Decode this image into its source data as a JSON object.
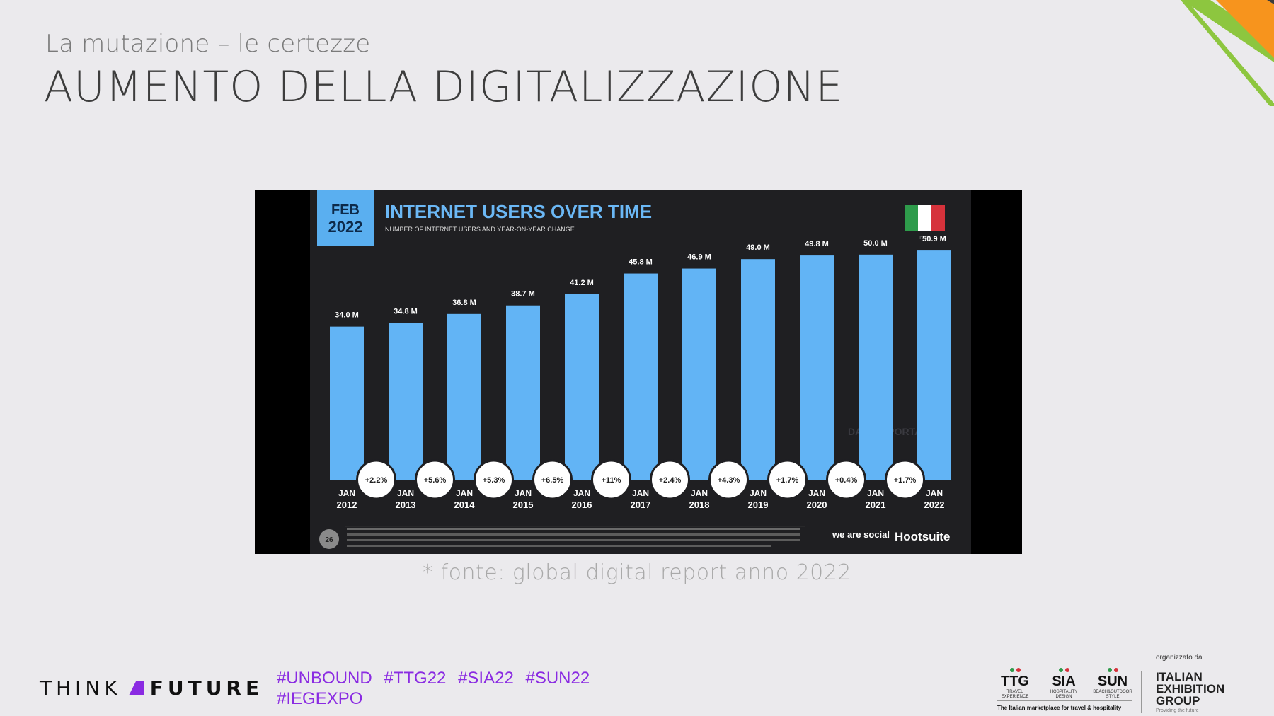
{
  "slide": {
    "subtitle": "La mutazione – le certezze",
    "title": "AUMENTO DELLA DIGITALIZZAZIONE",
    "source_note": "* fonte: global digital report anno 2022"
  },
  "chart_header": {
    "date_badge_line1": "FEB",
    "date_badge_line2": "2022",
    "heading": "INTERNET USERS OVER TIME",
    "subheading": "NUMBER OF INTERNET USERS AND YEAR-ON-YEAR CHANGE",
    "flag_label": "ITALY",
    "watermark": "DATAREPORTAL",
    "page_number": "26",
    "brand_we_are_social": "we are social",
    "brand_hootsuite": "Hootsuite"
  },
  "chart_data": {
    "type": "bar",
    "title": "INTERNET USERS OVER TIME",
    "subtitle": "NUMBER OF INTERNET USERS AND YEAR-ON-YEAR CHANGE",
    "categories": [
      "JAN 2012",
      "JAN 2013",
      "JAN 2014",
      "JAN 2015",
      "JAN 2016",
      "JAN 2017",
      "JAN 2018",
      "JAN 2019",
      "JAN 2020",
      "JAN 2021",
      "JAN 2022"
    ],
    "values": [
      34.0,
      34.8,
      36.8,
      38.7,
      41.2,
      45.8,
      46.9,
      49.0,
      49.8,
      50.0,
      50.9
    ],
    "value_labels": [
      "34.0 M",
      "34.8 M",
      "36.8 M",
      "38.7 M",
      "41.2 M",
      "45.8 M",
      "46.9 M",
      "49.0 M",
      "49.8 M",
      "50.0 M",
      "50.9 M"
    ],
    "yoy_changes": [
      "+2.2%",
      "+5.6%",
      "+5.3%",
      "+6.5%",
      "+11%",
      "+2.4%",
      "+4.3%",
      "+1.7%",
      "+0.4%",
      "+1.7%"
    ],
    "unit": "M",
    "ylim": [
      0,
      55
    ],
    "colors": {
      "bar": "#62b4f5",
      "background": "#1f1f22",
      "badge": "#5aaff0",
      "heading": "#6bb8f6"
    }
  },
  "footer": {
    "logo_left": "THINK",
    "logo_right": "FUTURE",
    "hashtags": [
      "#UNBOUND",
      "#TTG22",
      "#SIA22",
      "#SUN22",
      "#IEGEXPO"
    ],
    "brands": [
      {
        "name": "TTG",
        "sub": "TRAVEL EXPERIENCE"
      },
      {
        "name": "SIA",
        "sub": "HOSPITALITY DESIGN"
      },
      {
        "name": "SUN",
        "sub": "BEACH&OUTDOOR STYLE"
      }
    ],
    "tagline": "The Italian marketplace for travel & hospitality",
    "organizer_label": "organizzato da",
    "organizer_name": [
      "ITALIAN",
      "EXHIBITION",
      "GROUP"
    ],
    "organizer_sub": "Providing the future",
    "hashtag_color": "#8a2be2"
  }
}
